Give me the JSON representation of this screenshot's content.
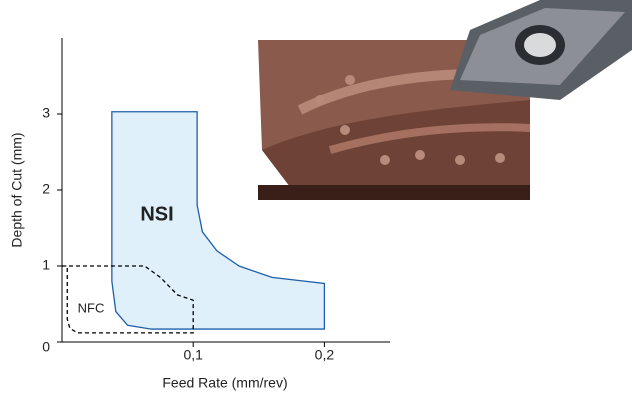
{
  "chart_data": {
    "type": "region",
    "xlabel": "Feed Rate (mm/rev)",
    "ylabel": "Depth of Cut (mm)",
    "xlim": [
      0,
      0.25
    ],
    "ylim": [
      0,
      4
    ],
    "xticks": [
      {
        "value": 0.1,
        "label": "0,1"
      },
      {
        "value": 0.2,
        "label": "0,2"
      }
    ],
    "yticks": [
      0,
      1,
      2,
      3
    ],
    "series": [
      {
        "name": "NSI",
        "color": "#1f5fa8",
        "fill": "#dff0fb",
        "dashed": false,
        "x": [
          0.038,
          0.038,
          0.103,
          0.103,
          0.107,
          0.118,
          0.135,
          0.16,
          0.2,
          0.2,
          0.068,
          0.05,
          0.041
        ],
        "y": [
          0.8,
          3.03,
          3.03,
          1.8,
          1.45,
          1.2,
          1.0,
          0.85,
          0.77,
          0.17,
          0.17,
          0.22,
          0.4
        ]
      },
      {
        "name": "NFC",
        "color": "#000000",
        "fill": "none",
        "dashed": true,
        "x": [
          0,
          0.063,
          0.075,
          0.088,
          0.1,
          0.1,
          0.012,
          0.006,
          0.004,
          0.004
        ],
        "y": [
          1.0,
          1.0,
          0.85,
          0.62,
          0.55,
          0.12,
          0.12,
          0.18,
          0.3,
          1.0
        ]
      }
    ]
  }
}
